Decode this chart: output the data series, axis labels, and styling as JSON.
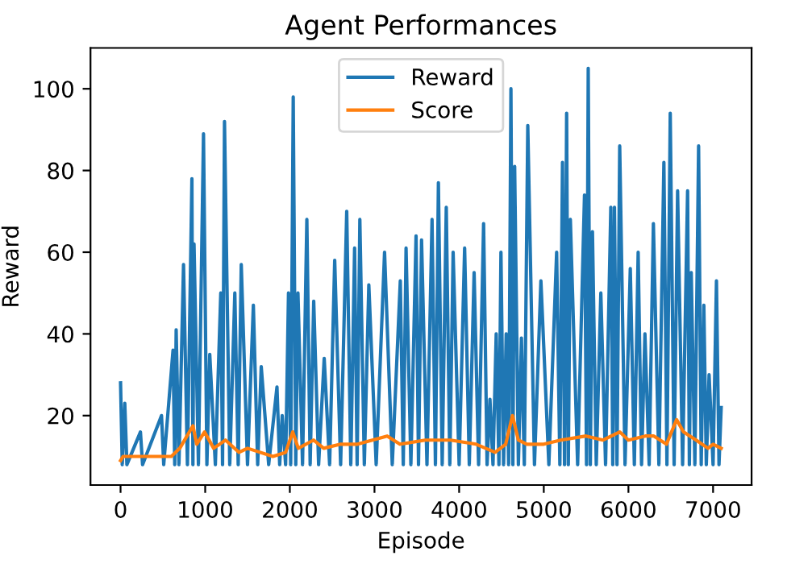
{
  "chart_data": {
    "type": "line",
    "title": "Agent Performances",
    "xlabel": "Episode",
    "ylabel": "Reward",
    "xlim": [
      -355,
      7455
    ],
    "ylim": [
      3,
      110
    ],
    "xticks": [
      0,
      1000,
      2000,
      3000,
      4000,
      5000,
      6000,
      7000
    ],
    "yticks": [
      20,
      40,
      60,
      80,
      100
    ],
    "grid": false,
    "legend": "top",
    "marker": "none",
    "line_style": "solid",
    "series": [
      {
        "name": "Reward",
        "color": "#1f77b4",
        "x": [
          0,
          20,
          50,
          75,
          235,
          260,
          484,
          510,
          620,
          640,
          657,
          690,
          744,
          790,
          843,
          855,
          868,
          920,
          980,
          1020,
          1054,
          1120,
          1184,
          1205,
          1228,
          1290,
          1350,
          1390,
          1426,
          1500,
          1569,
          1620,
          1662,
          1750,
          1848,
          1880,
          1910,
          1950,
          1984,
          2010,
          2040,
          2070,
          2096,
          2150,
          2201,
          2240,
          2282,
          2340,
          2406,
          2470,
          2530,
          2600,
          2672,
          2720,
          2765,
          2795,
          2827,
          2880,
          2933,
          3020,
          3119,
          3210,
          3305,
          3340,
          3373,
          3430,
          3491,
          3520,
          3556,
          3620,
          3680,
          3720,
          3755,
          3800,
          3848,
          3890,
          3929,
          4000,
          4065,
          4120,
          4177,
          4230,
          4289,
          4330,
          4364,
          4400,
          4438,
          4470,
          4494,
          4525,
          4556,
          4585,
          4612,
          4635,
          4656,
          4700,
          4736,
          4770,
          4811,
          4890,
          4966,
          5060,
          5152,
          5190,
          5221,
          5245,
          5270,
          5290,
          5314,
          5400,
          5481,
          5505,
          5525,
          5550,
          5575,
          5620,
          5674,
          5730,
          5792,
          5815,
          5835,
          5865,
          5897,
          5960,
          6022,
          6070,
          6115,
          6155,
          6195,
          6245,
          6295,
          6360,
          6419,
          6455,
          6494,
          6540,
          6581,
          6640,
          6699,
          6720,
          6742,
          6785,
          6829,
          6860,
          6891,
          6920,
          6953,
          7000,
          7040,
          7070,
          7096
        ],
        "values": [
          28,
          8,
          23,
          8,
          16,
          8,
          20,
          8,
          36,
          8,
          41,
          8,
          57,
          8,
          78,
          8,
          62,
          8,
          89,
          8,
          35,
          8,
          50,
          8,
          92,
          8,
          50,
          8,
          57,
          8,
          47,
          8,
          32,
          8,
          27,
          8,
          20,
          8,
          50,
          8,
          98,
          8,
          50,
          8,
          68,
          8,
          48,
          8,
          34,
          8,
          58,
          8,
          70,
          8,
          61,
          8,
          68,
          8,
          52,
          8,
          60,
          8,
          53,
          8,
          61,
          8,
          64,
          8,
          63,
          8,
          68,
          8,
          77,
          8,
          71,
          8,
          60,
          8,
          61,
          8,
          55,
          8,
          67,
          8,
          24,
          8,
          40,
          8,
          60,
          8,
          40,
          8,
          100,
          8,
          81,
          8,
          39,
          8,
          91,
          8,
          53,
          8,
          60,
          8,
          82,
          8,
          94,
          8,
          68,
          8,
          74,
          8,
          105,
          8,
          65,
          8,
          50,
          8,
          71,
          8,
          71,
          8,
          86,
          8,
          56,
          8,
          60,
          8,
          40,
          8,
          67,
          8,
          82,
          8,
          94,
          8,
          75,
          8,
          75,
          8,
          55,
          8,
          86,
          8,
          47,
          8,
          30,
          8,
          53,
          8,
          22
        ]
      },
      {
        "name": "Score",
        "color": "#ff7f0e",
        "x": [
          0,
          30,
          300,
          600,
          700,
          855,
          900,
          992,
          1100,
          1240,
          1400,
          1500,
          1800,
          1950,
          2034,
          2100,
          2280,
          2400,
          2600,
          2800,
          3150,
          3300,
          3600,
          3900,
          4200,
          4425,
          4550,
          4630,
          4700,
          4800,
          5000,
          5200,
          5500,
          5700,
          5897,
          6000,
          6200,
          6300,
          6450,
          6569,
          6650,
          6800,
          6940,
          7000,
          7096
        ],
        "values": [
          9,
          10,
          10,
          10,
          12,
          17.5,
          13,
          16,
          12,
          14,
          11,
          12,
          10,
          11,
          16,
          12,
          14,
          12,
          13,
          13,
          15,
          13,
          14,
          14,
          13,
          11,
          13,
          20,
          14,
          13,
          13,
          14,
          15,
          14,
          16,
          14,
          15,
          15,
          13,
          19,
          16,
          14,
          12,
          13,
          12
        ]
      }
    ]
  }
}
